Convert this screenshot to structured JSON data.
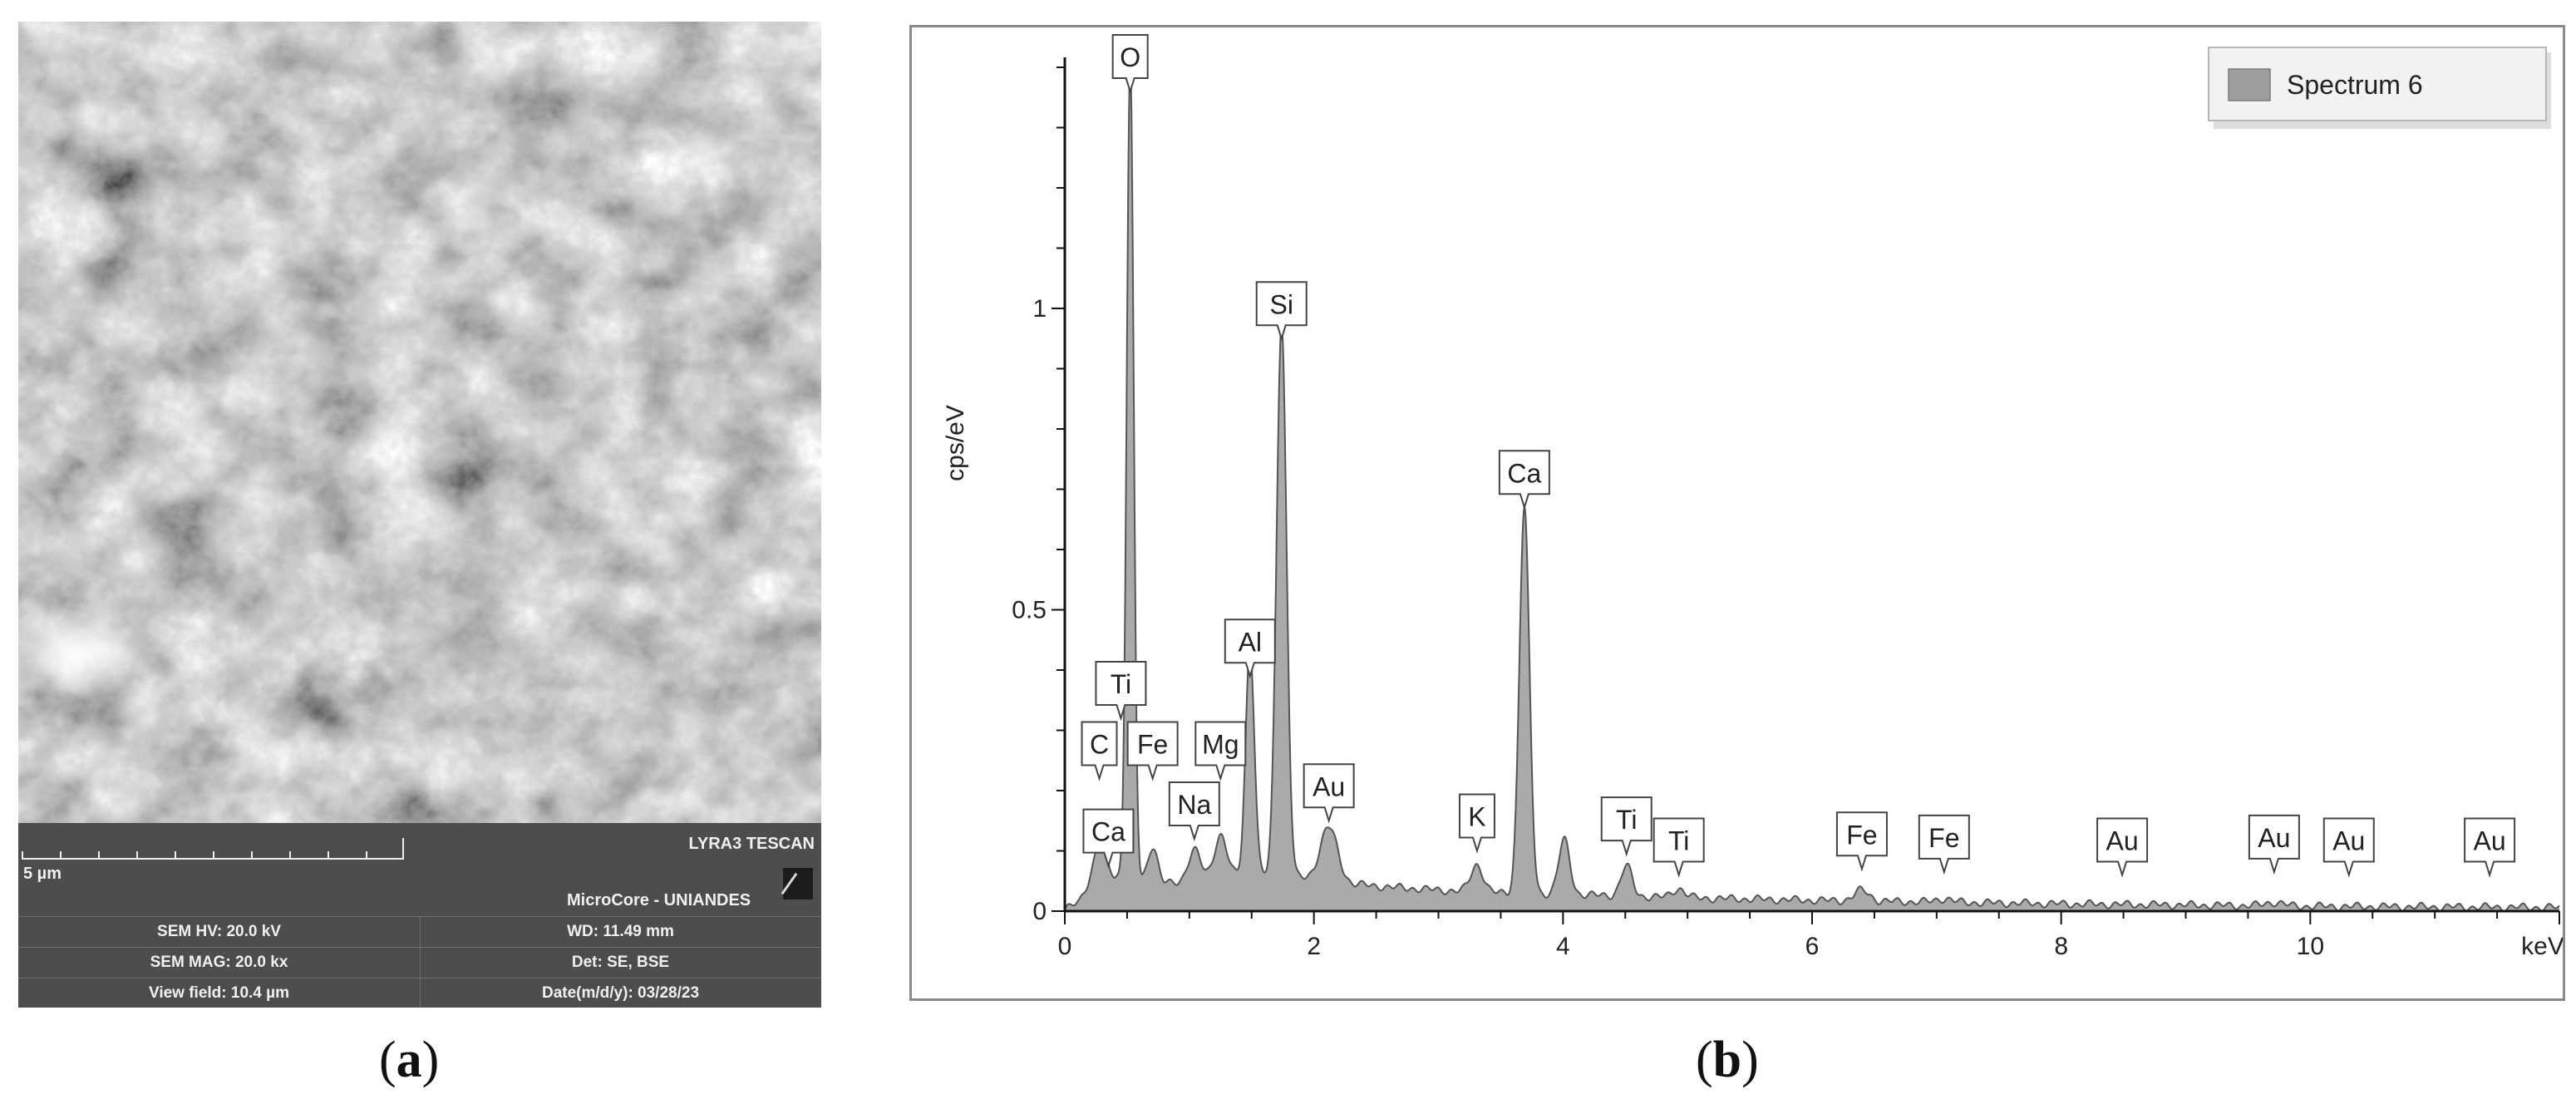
{
  "panel_a": {
    "caption_letter": "a",
    "sem_image": "sem-micrograph-grainy-particles",
    "scale_bar_label": "5 µm",
    "instrument": "LYRA3 TESCAN",
    "facility": "MicroCore - UNIANDES",
    "info": [
      {
        "left": "SEM HV: 20.0 kV",
        "right": "WD: 11.49 mm"
      },
      {
        "left": "SEM MAG: 20.0 kx",
        "right": "Det: SE, BSE"
      },
      {
        "left": "View field: 10.4 µm",
        "right": "Date(m/d/y): 03/28/23"
      }
    ]
  },
  "panel_b": {
    "caption_letter": "b"
  },
  "chart_data": {
    "type": "area",
    "title": "",
    "xlabel": "keV",
    "ylabel": "cps/eV",
    "xlim": [
      0,
      12
    ],
    "ylim": [
      0,
      1.4
    ],
    "x_ticks": [
      "0",
      "2",
      "4",
      "6",
      "8",
      "10"
    ],
    "y_ticks": [
      "0",
      "0.5",
      "1"
    ],
    "legend": {
      "placement": "top-right",
      "entries": [
        "Spectrum 6"
      ]
    },
    "series": [
      {
        "name": "Spectrum 6",
        "fill_color": "#aaaaaa",
        "line_color": "#555555",
        "baseline": [
          [
            0,
            0
          ],
          [
            0.12,
            0.02
          ],
          [
            0.2,
            0.05
          ],
          [
            0.3,
            0.08
          ],
          [
            0.4,
            0.06
          ],
          [
            0.6,
            0.05
          ],
          [
            0.8,
            0.045
          ],
          [
            1.0,
            0.05
          ],
          [
            1.2,
            0.055
          ],
          [
            1.4,
            0.06
          ],
          [
            1.6,
            0.06
          ],
          [
            1.9,
            0.055
          ],
          [
            2.3,
            0.045
          ],
          [
            2.6,
            0.04
          ],
          [
            3.0,
            0.035
          ],
          [
            3.5,
            0.03
          ],
          [
            4.0,
            0.028
          ],
          [
            4.5,
            0.025
          ],
          [
            5.0,
            0.022
          ],
          [
            6.0,
            0.018
          ],
          [
            7.0,
            0.015
          ],
          [
            8.0,
            0.012
          ],
          [
            9.0,
            0.01
          ],
          [
            10.0,
            0.008
          ],
          [
            11.0,
            0.007
          ],
          [
            12.0,
            0.006
          ]
        ],
        "peaks": [
          {
            "center": 0.277,
            "height": 0.04,
            "width": 0.04
          },
          {
            "center": 0.525,
            "height": 1.35,
            "width": 0.028
          },
          {
            "center": 0.705,
            "height": 0.06,
            "width": 0.04
          },
          {
            "center": 1.04,
            "height": 0.05,
            "width": 0.05
          },
          {
            "center": 1.25,
            "height": 0.07,
            "width": 0.05
          },
          {
            "center": 1.487,
            "height": 0.38,
            "width": 0.035
          },
          {
            "center": 1.74,
            "height": 0.92,
            "width": 0.04
          },
          {
            "center": 2.12,
            "height": 0.09,
            "width": 0.07
          },
          {
            "center": 3.31,
            "height": 0.045,
            "width": 0.05
          },
          {
            "center": 3.69,
            "height": 0.64,
            "width": 0.04
          },
          {
            "center": 4.01,
            "height": 0.09,
            "width": 0.045
          },
          {
            "center": 4.51,
            "height": 0.05,
            "width": 0.045
          },
          {
            "center": 4.93,
            "height": 0.015,
            "width": 0.05
          },
          {
            "center": 6.4,
            "height": 0.018,
            "width": 0.06
          },
          {
            "center": 7.06,
            "height": 0.006,
            "width": 0.06
          },
          {
            "center": 9.71,
            "height": 0.006,
            "width": 0.07
          }
        ]
      }
    ],
    "annotations": [
      {
        "label": "O",
        "x": 0.525,
        "y": 1.36
      },
      {
        "label": "Si",
        "x": 1.74,
        "y": 0.95
      },
      {
        "label": "Ca",
        "x": 3.69,
        "y": 0.67
      },
      {
        "label": "Al",
        "x": 1.487,
        "y": 0.39
      },
      {
        "label": "Ti",
        "x": 0.45,
        "y": 0.32
      },
      {
        "label": "C",
        "x": 0.277,
        "y": 0.22
      },
      {
        "label": "Fe",
        "x": 0.705,
        "y": 0.22
      },
      {
        "label": "Mg",
        "x": 1.25,
        "y": 0.22
      },
      {
        "label": "Au",
        "x": 2.12,
        "y": 0.15
      },
      {
        "label": "Na",
        "x": 1.04,
        "y": 0.12
      },
      {
        "label": "K",
        "x": 3.31,
        "y": 0.1
      },
      {
        "label": "Ti",
        "x": 4.51,
        "y": 0.095
      },
      {
        "label": "Ti",
        "x": 4.93,
        "y": 0.06
      },
      {
        "label": "Ca",
        "x": 0.35,
        "y": 0.075
      },
      {
        "label": "Fe",
        "x": 6.4,
        "y": 0.07
      },
      {
        "label": "Fe",
        "x": 7.06,
        "y": 0.065
      },
      {
        "label": "Au",
        "x": 8.49,
        "y": 0.06
      },
      {
        "label": "Au",
        "x": 9.71,
        "y": 0.065
      },
      {
        "label": "Au",
        "x": 10.31,
        "y": 0.06
      },
      {
        "label": "Au",
        "x": 11.44,
        "y": 0.06
      }
    ]
  }
}
